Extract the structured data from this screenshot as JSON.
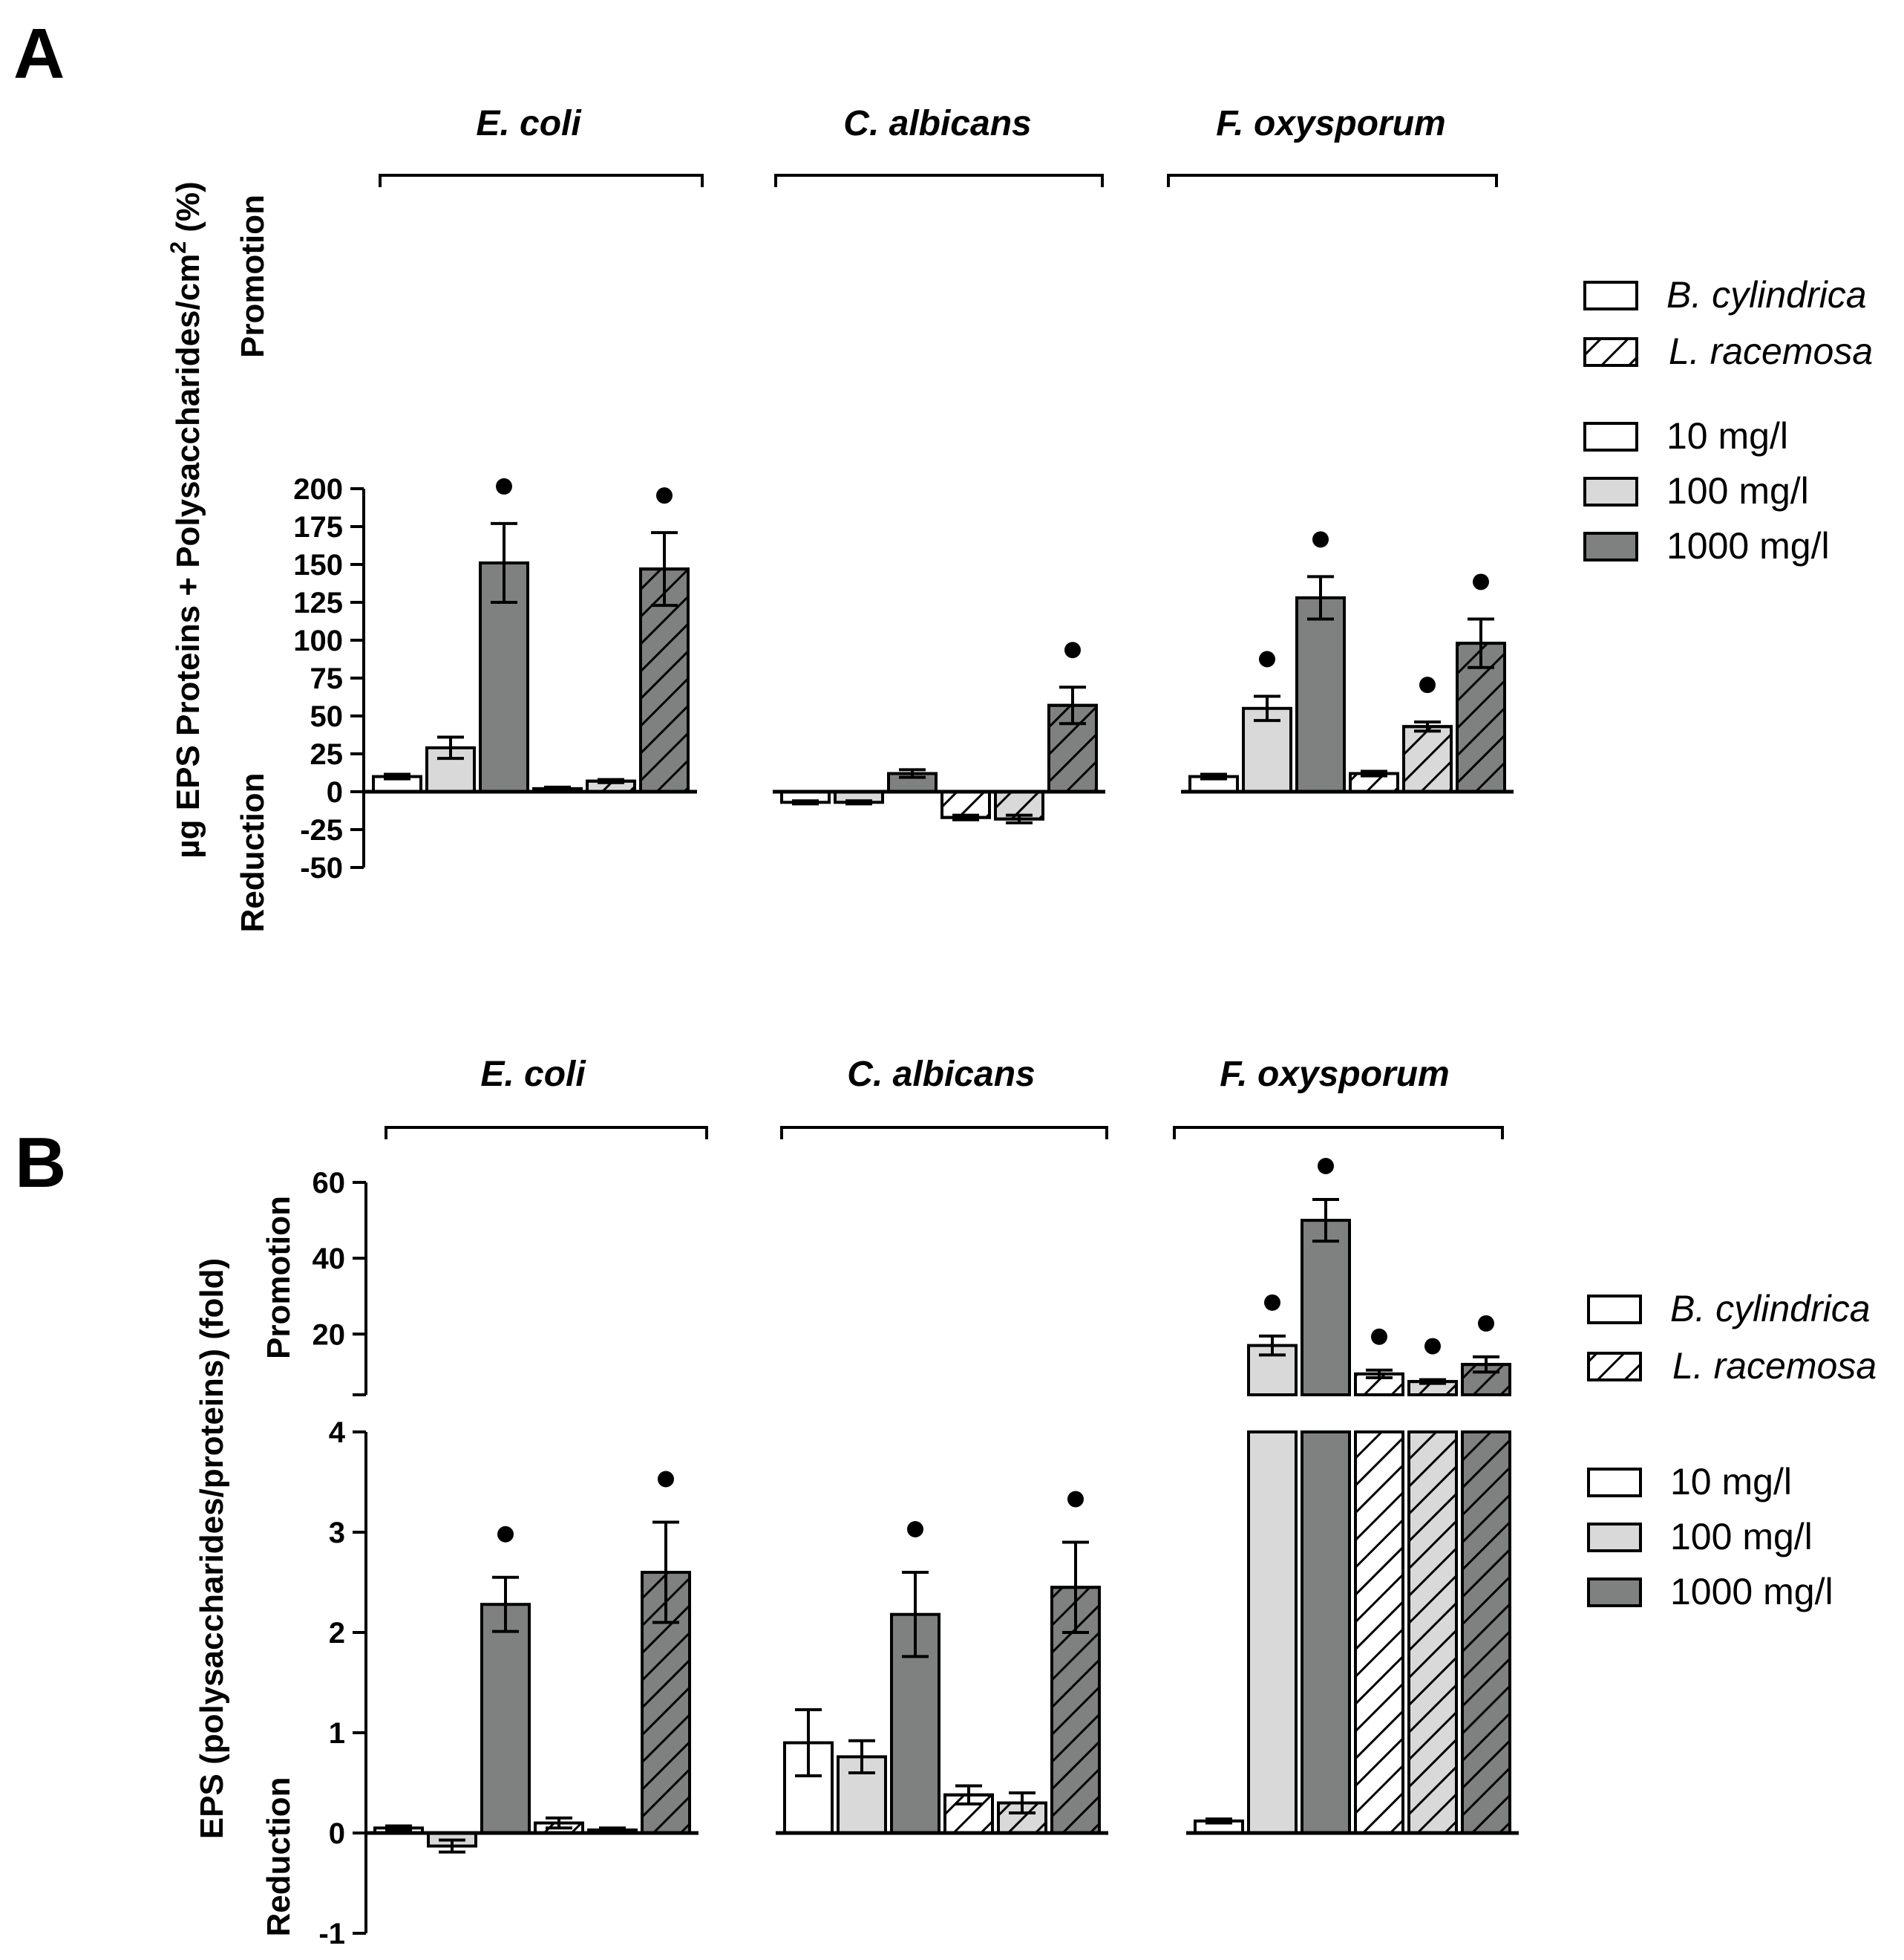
{
  "chart_data": [
    {
      "panel": "A",
      "type": "bar",
      "groups": [
        "E. coli",
        "C. albicans",
        "F. oxysporum"
      ],
      "ylabel": "µg EPS Proteins + Polysaccharides/cm",
      "ylabel_sup": "2",
      "ylabel_unit": "(%)",
      "ylabel_promotion": "Promotion",
      "ylabel_reduction": "Reduction",
      "ylim": [
        -50,
        200
      ],
      "yticks": [
        -50,
        -25,
        0,
        25,
        50,
        75,
        100,
        125,
        150,
        175,
        200
      ],
      "series": [
        {
          "name": "B. cylindrica 10 mg/l",
          "plant": "B. cylindrica",
          "dose": "10 mg/l",
          "values": [
            10,
            -7,
            10
          ],
          "errors": [
            1.5,
            1.0,
            1.5
          ],
          "significant": [
            false,
            false,
            false
          ]
        },
        {
          "name": "B. cylindrica 100 mg/l",
          "plant": "B. cylindrica",
          "dose": "100 mg/l",
          "values": [
            29,
            -7,
            55
          ],
          "errors": [
            7,
            1.0,
            8
          ],
          "significant": [
            false,
            false,
            true
          ]
        },
        {
          "name": "B. cylindrica 1000 mg/l",
          "plant": "B. cylindrica",
          "dose": "1000 mg/l",
          "values": [
            151,
            12,
            128
          ],
          "errors": [
            26,
            2.5,
            14
          ],
          "significant": [
            true,
            false,
            true
          ]
        },
        {
          "name": "L. racemosa 10 mg/l",
          "plant": "L. racemosa",
          "dose": "10 mg/l",
          "values": [
            2,
            -17,
            12
          ],
          "errors": [
            1,
            1.5,
            1.5
          ],
          "significant": [
            false,
            false,
            false
          ]
        },
        {
          "name": "L. racemosa 100 mg/l",
          "plant": "L. racemosa",
          "dose": "100 mg/l",
          "values": [
            7,
            -18,
            43
          ],
          "errors": [
            1,
            2.5,
            3
          ],
          "significant": [
            false,
            false,
            true
          ]
        },
        {
          "name": "L. racemosa 1000 mg/l",
          "plant": "L. racemosa",
          "dose": "1000 mg/l",
          "values": [
            147,
            57,
            98
          ],
          "errors": [
            24,
            12,
            16
          ],
          "significant": [
            true,
            true,
            true
          ]
        }
      ]
    },
    {
      "panel": "B",
      "type": "bar",
      "groups": [
        "E. coli",
        "C. albicans",
        "F. oxysporum"
      ],
      "ylabel": "EPS (polysaccharides/proteins)  (fold)",
      "ylabel_promotion": "Promotion",
      "ylabel_reduction": "Reduction",
      "ylim_lower": [
        -1,
        4
      ],
      "yticks_lower": [
        -1,
        0,
        1,
        2,
        3,
        4
      ],
      "ylim_upper": [
        4,
        60
      ],
      "yticks_upper": [
        20,
        40,
        60
      ],
      "series": [
        {
          "name": "B. cylindrica 10 mg/l",
          "plant": "B. cylindrica",
          "dose": "10 mg/l",
          "values": [
            0.05,
            0.9,
            0.12
          ],
          "errors": [
            0.02,
            0.33,
            0.02
          ],
          "significant": [
            false,
            false,
            false
          ]
        },
        {
          "name": "B. cylindrica 100 mg/l",
          "plant": "B. cylindrica",
          "dose": "100 mg/l",
          "values": [
            -0.13,
            0.76,
            17
          ],
          "errors": [
            0.06,
            0.16,
            2.5
          ],
          "significant": [
            false,
            false,
            true
          ]
        },
        {
          "name": "B. cylindrica 1000 mg/l",
          "plant": "B. cylindrica",
          "dose": "1000 mg/l",
          "values": [
            2.28,
            2.18,
            50
          ],
          "errors": [
            0.27,
            0.42,
            5.5
          ],
          "significant": [
            true,
            true,
            true
          ]
        },
        {
          "name": "L. racemosa 10 mg/l",
          "plant": "L. racemosa",
          "dose": "10 mg/l",
          "values": [
            0.1,
            0.38,
            9.5
          ],
          "errors": [
            0.05,
            0.09,
            1
          ],
          "significant": [
            false,
            false,
            true
          ]
        },
        {
          "name": "L. racemosa 100 mg/l",
          "plant": "L. racemosa",
          "dose": "100 mg/l",
          "values": [
            0.03,
            0.3,
            7.5
          ],
          "errors": [
            0.02,
            0.1,
            0.5
          ],
          "significant": [
            false,
            false,
            true
          ]
        },
        {
          "name": "L. racemosa 1000 mg/l",
          "plant": "L. racemosa",
          "dose": "1000 mg/l",
          "values": [
            2.6,
            2.45,
            12
          ],
          "errors": [
            0.5,
            0.45,
            2
          ],
          "significant": [
            true,
            true,
            true
          ]
        }
      ]
    }
  ],
  "legend": {
    "plants": [
      "B. cylindrica",
      "L. racemosa"
    ],
    "doses": [
      "10 mg/l",
      "100 mg/l",
      "1000 mg/l"
    ]
  },
  "colors": {
    "dose_10": "#ffffff",
    "dose_100": "#d9d9d9",
    "dose_1000": "#7f8080",
    "outline": "#000000"
  }
}
